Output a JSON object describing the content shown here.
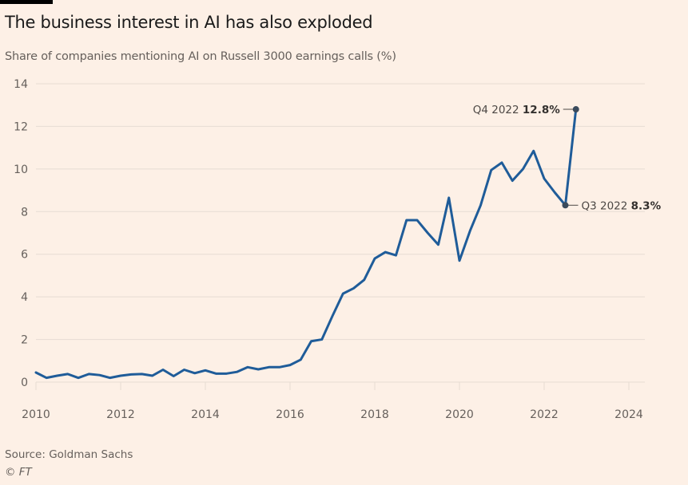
{
  "title": "The business interest in AI has also exploded",
  "subtitle": "Share of companies mentioning AI on Russell 3000 earnings calls (%)",
  "source": "Source: Goldman Sachs",
  "copyright": "© FT",
  "colors": {
    "line": "#1f5c99",
    "grid": "#e6dcd3",
    "marker": "#3a4a5c",
    "background": "#fdf0e6"
  },
  "chart_data": {
    "type": "line",
    "title": "The business interest in AI has also exploded",
    "subtitle": "Share of companies mentioning AI on Russell 3000 earnings calls (%)",
    "xlabel": "",
    "ylabel": "",
    "xlim": [
      2010,
      2024
    ],
    "ylim": [
      0,
      14
    ],
    "grid": true,
    "x_ticks": [
      "2010",
      "2012",
      "2014",
      "2016",
      "2018",
      "2020",
      "2022",
      "2024"
    ],
    "y_ticks": [
      "0",
      "2",
      "4",
      "6",
      "8",
      "10",
      "12",
      "14"
    ],
    "x_start": 2010,
    "x_step": 0.25,
    "series": [
      {
        "name": "Share of companies mentioning AI (%)",
        "values": [
          0.45,
          0.2,
          0.3,
          0.38,
          0.2,
          0.38,
          0.33,
          0.2,
          0.3,
          0.36,
          0.38,
          0.3,
          0.58,
          0.28,
          0.58,
          0.42,
          0.55,
          0.4,
          0.4,
          0.48,
          0.7,
          0.6,
          0.7,
          0.7,
          0.8,
          1.05,
          1.92,
          2.0,
          3.1,
          4.15,
          4.4,
          4.8,
          5.8,
          6.1,
          5.95,
          7.6,
          7.6,
          7.0,
          6.45,
          8.65,
          5.7,
          7.1,
          8.3,
          9.95,
          10.3,
          9.45,
          10.0,
          10.85,
          9.55,
          8.9,
          8.3,
          12.8
        ]
      }
    ],
    "annotations": [
      {
        "index": 51,
        "label": "Q4 2022",
        "value_label": "12.8%",
        "side": "left"
      },
      {
        "index": 50,
        "label": "Q3 2022",
        "value_label": "8.3%",
        "side": "right"
      }
    ]
  }
}
